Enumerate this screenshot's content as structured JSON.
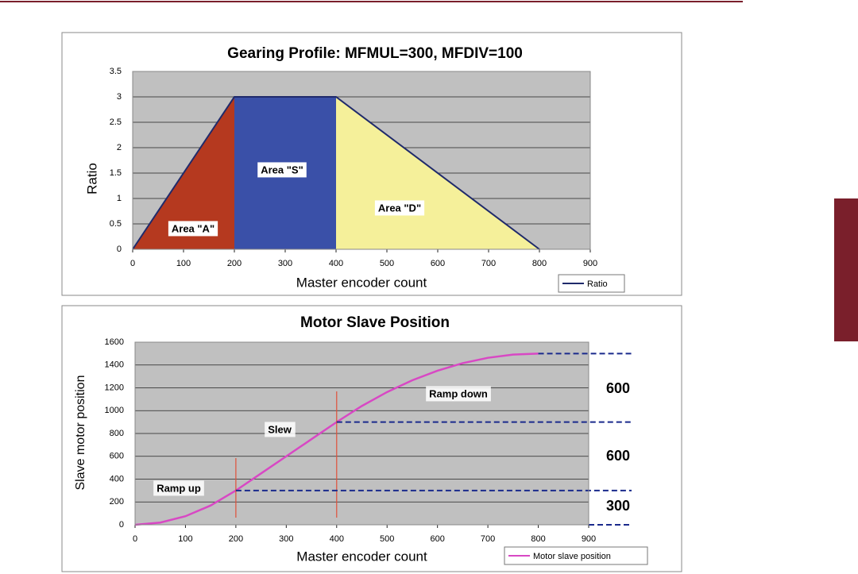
{
  "chart_data": [
    {
      "type": "line",
      "title": "Gearing Profile: MFMUL=300, MFDIV=100",
      "xlabel": "Master encoder count",
      "ylabel": "Ratio",
      "xlim": [
        0,
        900
      ],
      "xticks": [
        0,
        100,
        200,
        300,
        400,
        500,
        600,
        700,
        800,
        900
      ],
      "ylim": [
        0,
        3.5
      ],
      "yticks": [
        0,
        0.5,
        1,
        1.5,
        2,
        2.5,
        3,
        3.5
      ],
      "grid": true,
      "legend": "bottom-right",
      "series": [
        {
          "name": "Ratio",
          "color": "#1f2a6b",
          "x": [
            0,
            200,
            400,
            800
          ],
          "values": [
            0,
            3,
            3,
            0
          ]
        }
      ],
      "areas": [
        {
          "label": "Area \"A\"",
          "color": "#b5391f",
          "range": [
            0,
            200
          ]
        },
        {
          "label": "Area \"S\"",
          "color": "#3a50a8",
          "range": [
            200,
            400
          ]
        },
        {
          "label": "Area \"D\"",
          "color": "#f5f09a",
          "range": [
            400,
            800
          ]
        }
      ]
    },
    {
      "type": "line",
      "title": "Motor Slave Position",
      "xlabel": "Master encoder count",
      "ylabel": "Slave motor position",
      "xlim": [
        0,
        900
      ],
      "xticks": [
        0,
        100,
        200,
        300,
        400,
        500,
        600,
        700,
        800,
        900
      ],
      "ylim": [
        0,
        1600
      ],
      "yticks": [
        0,
        200,
        400,
        600,
        800,
        1000,
        1200,
        1400,
        1600
      ],
      "grid": true,
      "legend": "bottom-right",
      "series": [
        {
          "name": "Motor slave position",
          "color": "#d848c4",
          "x": [
            0,
            50,
            100,
            150,
            200,
            250,
            300,
            350,
            400,
            450,
            500,
            550,
            600,
            650,
            700,
            750,
            800
          ],
          "values": [
            0,
            19,
            75,
            169,
            300,
            450,
            600,
            750,
            900,
            1041,
            1163,
            1266,
            1350,
            1416,
            1463,
            1491,
            1500
          ]
        }
      ],
      "annotations": [
        "Ramp up",
        "Slew",
        "Ramp down"
      ],
      "phase_lines": [
        200,
        400
      ],
      "level_lines": [
        {
          "x": 800,
          "y": 1500
        },
        {
          "x": 400,
          "y": 900
        },
        {
          "x": 200,
          "y": 300
        },
        {
          "x": 900,
          "y": 0
        }
      ],
      "step_labels": [
        600,
        600,
        300
      ]
    }
  ]
}
